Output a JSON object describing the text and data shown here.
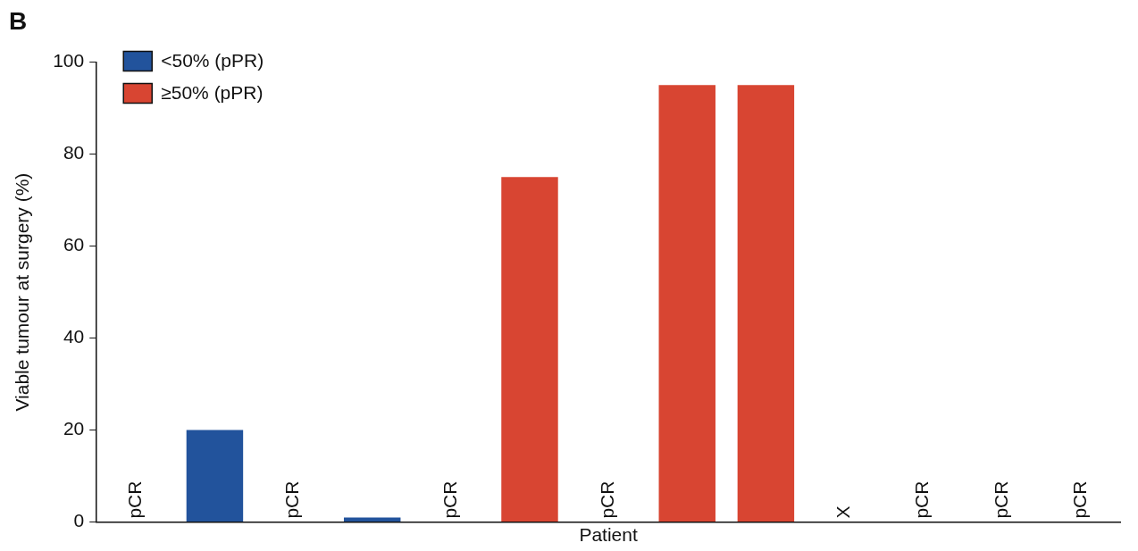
{
  "chart_data": {
    "type": "bar",
    "title": "B",
    "xlabel": "Patient",
    "ylabel": "Viable tumour at surgery (%)",
    "categories": [
      null,
      null,
      null,
      null,
      null,
      null,
      null,
      null,
      null,
      null,
      null,
      null,
      null
    ],
    "series": [
      {
        "name": "<50% (pPR)",
        "color": "#22539c",
        "values": [
          null,
          20,
          null,
          1,
          null,
          null,
          null,
          null,
          null,
          null,
          null,
          null,
          null
        ]
      },
      {
        "name": "≥50% (pPR)",
        "color": "#d84532",
        "values": [
          null,
          null,
          null,
          null,
          null,
          75,
          null,
          95,
          95,
          null,
          null,
          null,
          null
        ]
      },
      {
        "color": "#000000",
        "values": [
          0,
          null,
          0,
          null,
          0,
          null,
          0,
          null,
          null,
          0,
          0,
          0,
          0
        ],
        "value_labels": [
          "pCR",
          null,
          "pCR",
          null,
          "pCR",
          null,
          "pCR",
          null,
          null,
          "X",
          "pCR",
          "pCR",
          "pCR"
        ]
      }
    ],
    "ylim": [
      0,
      100
    ],
    "yticks": [
      0,
      20,
      40,
      60,
      80,
      100
    ],
    "grid": false,
    "legend": "top left"
  }
}
